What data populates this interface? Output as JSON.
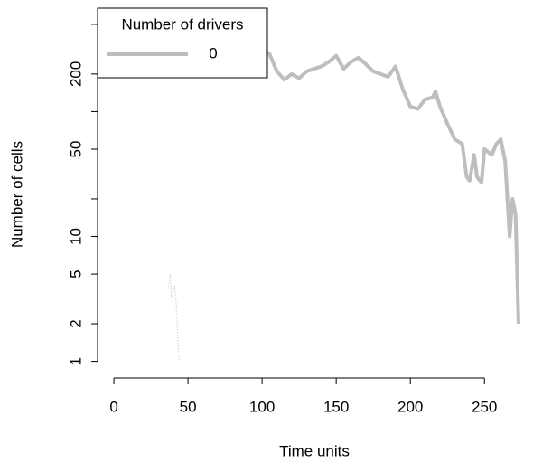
{
  "chart_data": {
    "type": "line",
    "xlabel": "Time units",
    "ylabel": "Number of cells",
    "legend_title": "Number of drivers",
    "legend_position": "top-left",
    "xlim": [
      -11,
      284
    ],
    "xticks": [
      0,
      50,
      100,
      150,
      200,
      250
    ],
    "ylim": [
      0.8,
      620
    ],
    "ylog": true,
    "yticks": [
      1,
      2,
      5,
      10,
      50,
      200
    ],
    "minor_yticks": [
      20,
      100,
      500
    ],
    "series": [
      {
        "name": "0",
        "color": "#bebebe",
        "style": "solid",
        "width": 4,
        "x": [
          5,
          10,
          15,
          20,
          25,
          30,
          35,
          40,
          45,
          50,
          55,
          60,
          65,
          70,
          75,
          80,
          85,
          90,
          95,
          100,
          105,
          110,
          115,
          120,
          125,
          130,
          135,
          140,
          145,
          150,
          155,
          160,
          165,
          170,
          175,
          180,
          185,
          190,
          195,
          200,
          205,
          210,
          215,
          217,
          220,
          225,
          230,
          235,
          238,
          240,
          243,
          245,
          248,
          250,
          255,
          258,
          261,
          264,
          267,
          269,
          271,
          273
        ],
        "values": [
          550,
          350,
          330,
          340,
          320,
          360,
          330,
          420,
          450,
          360,
          300,
          280,
          330,
          350,
          380,
          360,
          400,
          420,
          330,
          310,
          290,
          210,
          180,
          200,
          185,
          210,
          220,
          230,
          250,
          280,
          220,
          250,
          270,
          240,
          210,
          200,
          190,
          230,
          150,
          110,
          105,
          125,
          130,
          145,
          110,
          80,
          60,
          55,
          30,
          28,
          45,
          30,
          27,
          50,
          45,
          55,
          60,
          40,
          10,
          20,
          15,
          2
        ]
      },
      {
        "color": "#bebebe",
        "style": "dotted",
        "width": 1,
        "x": [
          37,
          38,
          39,
          41,
          42,
          44
        ],
        "values": [
          4,
          5,
          3.2,
          4,
          3,
          1
        ]
      }
    ]
  }
}
